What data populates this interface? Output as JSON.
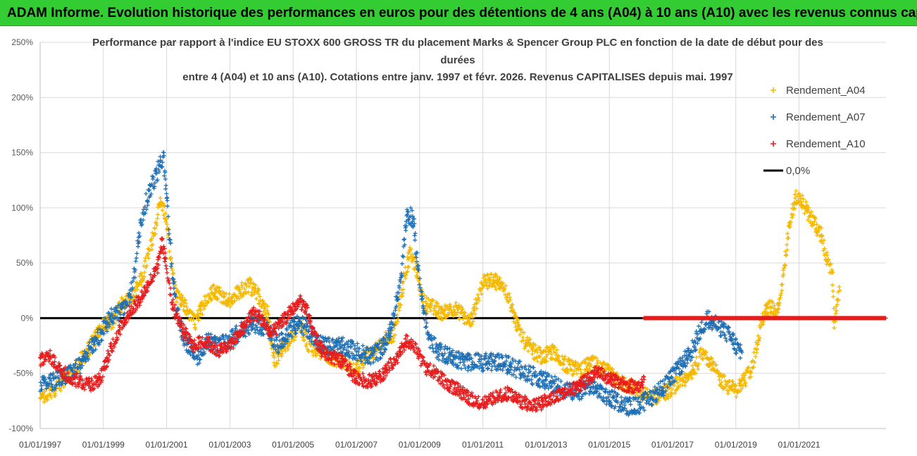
{
  "header": {
    "title": "ADAM Informe. Evolution historique des performances en euros pour des détentions de 4 ans (A04) à 10 ans (A10) avec les revenus connus capitalisés"
  },
  "colors": {
    "banner": "#33cc33",
    "a04": "#f5b800",
    "a07": "#1f6fb5",
    "a10": "#e81c1c",
    "zero": "#000000",
    "grid": "#d9d9d9"
  },
  "chart_data": {
    "type": "scatter",
    "title_lines": [
      "Performance par rapport à l'indice EU STOXX 600 GROSS TR  du placement Marks & Spencer Group PLC en fonction de la date de début pour des",
      "durées",
      "entre 4 (A04) et 10 ans (A10). Cotations entre janv. 1997 et févr. 2026. Revenus CAPITALISES depuis mai. 1997"
    ],
    "x_start_year": 1997,
    "x_end_year": 2023.75,
    "x_ticks": [
      {
        "year": 1997,
        "label": "01/01/1997"
      },
      {
        "year": 1999,
        "label": "01/01/1999"
      },
      {
        "year": 2001,
        "label": "01/01/2001"
      },
      {
        "year": 2003,
        "label": "01/01/2003"
      },
      {
        "year": 2005,
        "label": "01/01/2005"
      },
      {
        "year": 2007,
        "label": "01/01/2007"
      },
      {
        "year": 2009,
        "label": "01/01/2009"
      },
      {
        "year": 2011,
        "label": "01/01/2011"
      },
      {
        "year": 2013,
        "label": "01/01/2013"
      },
      {
        "year": 2015,
        "label": "01/01/2015"
      },
      {
        "year": 2017,
        "label": "01/01/2017"
      },
      {
        "year": 2019,
        "label": "01/01/2019"
      },
      {
        "year": 2021,
        "label": "01/01/2021"
      }
    ],
    "ylim": [
      -100,
      250
    ],
    "y_ticks": [
      {
        "value": 250,
        "label": "250%"
      },
      {
        "value": 200,
        "label": "200%"
      },
      {
        "value": 150,
        "label": "150%"
      },
      {
        "value": 100,
        "label": "100%"
      },
      {
        "value": 50,
        "label": "50%"
      },
      {
        "value": 0,
        "label": "0%"
      },
      {
        "value": -50,
        "label": "-50%"
      },
      {
        "value": -100,
        "label": "-100%"
      }
    ],
    "legend": {
      "position": "right",
      "items": [
        {
          "label": "Rendement_A04",
          "series": "a04",
          "marker": "plus"
        },
        {
          "label": "Rendement_A07",
          "series": "a07",
          "marker": "plus"
        },
        {
          "label": "Rendement_A10",
          "series": "a10",
          "marker": "plus"
        },
        {
          "label": "0,0%",
          "series": "zero",
          "marker": "line"
        }
      ]
    },
    "series": [
      {
        "name": "Rendement_A04",
        "key": "a04",
        "end_year": 2022.3,
        "points": [
          [
            1997.0,
            -75
          ],
          [
            1997.4,
            -65
          ],
          [
            1997.8,
            -55
          ],
          [
            1998.2,
            -42
          ],
          [
            1998.6,
            -25
          ],
          [
            1999.0,
            -5
          ],
          [
            1999.3,
            -3
          ],
          [
            1999.6,
            15
          ],
          [
            1999.9,
            20
          ],
          [
            2000.2,
            35
          ],
          [
            2000.5,
            65
          ],
          [
            2000.8,
            105
          ],
          [
            2000.95,
            95
          ],
          [
            2001.1,
            60
          ],
          [
            2001.3,
            20
          ],
          [
            2001.6,
            10
          ],
          [
            2001.9,
            -5
          ],
          [
            2002.2,
            15
          ],
          [
            2002.5,
            25
          ],
          [
            2002.8,
            20
          ],
          [
            2003.0,
            15
          ],
          [
            2003.3,
            25
          ],
          [
            2003.6,
            30
          ],
          [
            2003.9,
            20
          ],
          [
            2004.2,
            5
          ],
          [
            2004.4,
            -40
          ],
          [
            2004.6,
            -30
          ],
          [
            2004.9,
            -20
          ],
          [
            2005.2,
            -5
          ],
          [
            2005.5,
            -25
          ],
          [
            2005.8,
            -30
          ],
          [
            2006.2,
            -35
          ],
          [
            2006.6,
            -40
          ],
          [
            2007.0,
            -45
          ],
          [
            2007.3,
            -35
          ],
          [
            2007.6,
            -30
          ],
          [
            2007.9,
            -20
          ],
          [
            2008.2,
            -15
          ],
          [
            2008.5,
            35
          ],
          [
            2008.7,
            60
          ],
          [
            2008.9,
            45
          ],
          [
            2009.1,
            15
          ],
          [
            2009.4,
            10
          ],
          [
            2009.7,
            5
          ],
          [
            2010.0,
            10
          ],
          [
            2010.3,
            5
          ],
          [
            2010.6,
            -5
          ],
          [
            2010.8,
            15
          ],
          [
            2011.0,
            32
          ],
          [
            2011.3,
            35
          ],
          [
            2011.6,
            30
          ],
          [
            2011.8,
            20
          ],
          [
            2012.0,
            0
          ],
          [
            2012.3,
            -20
          ],
          [
            2012.6,
            -30
          ],
          [
            2012.9,
            -35
          ],
          [
            2013.2,
            -30
          ],
          [
            2013.5,
            -40
          ],
          [
            2013.8,
            -45
          ],
          [
            2014.1,
            -48
          ],
          [
            2014.4,
            -40
          ],
          [
            2014.7,
            -45
          ],
          [
            2015.0,
            -50
          ],
          [
            2015.3,
            -58
          ],
          [
            2015.7,
            -62
          ],
          [
            2016.0,
            -68
          ],
          [
            2016.3,
            -72
          ],
          [
            2016.6,
            -70
          ],
          [
            2016.9,
            -65
          ],
          [
            2017.2,
            -58
          ],
          [
            2017.5,
            -55
          ],
          [
            2017.8,
            -40
          ],
          [
            2017.95,
            -30
          ],
          [
            2018.2,
            -40
          ],
          [
            2018.5,
            -55
          ],
          [
            2018.8,
            -63
          ],
          [
            2019.0,
            -65
          ],
          [
            2019.3,
            -55
          ],
          [
            2019.5,
            -45
          ],
          [
            2019.7,
            -20
          ],
          [
            2019.9,
            5
          ],
          [
            2020.1,
            10
          ],
          [
            2020.3,
            5
          ],
          [
            2020.5,
            40
          ],
          [
            2020.7,
            85
          ],
          [
            2020.9,
            110
          ],
          [
            2021.1,
            105
          ],
          [
            2021.3,
            95
          ],
          [
            2021.5,
            85
          ],
          [
            2021.7,
            75
          ],
          [
            2021.9,
            50
          ],
          [
            2022.05,
            40
          ],
          [
            2022.1,
            -5
          ],
          [
            2022.3,
            30
          ]
        ]
      },
      {
        "name": "Rendement_A07",
        "key": "a07",
        "end_year": 2019.2,
        "points": [
          [
            1997.0,
            -62
          ],
          [
            1997.4,
            -58
          ],
          [
            1997.8,
            -52
          ],
          [
            1998.2,
            -45
          ],
          [
            1998.6,
            -28
          ],
          [
            1999.0,
            -10
          ],
          [
            1999.2,
            0
          ],
          [
            1999.5,
            5
          ],
          [
            1999.8,
            15
          ],
          [
            2000.0,
            45
          ],
          [
            2000.2,
            90
          ],
          [
            2000.4,
            110
          ],
          [
            2000.6,
            125
          ],
          [
            2000.8,
            140
          ],
          [
            2000.9,
            145
          ],
          [
            2001.0,
            110
          ],
          [
            2001.2,
            30
          ],
          [
            2001.5,
            -15
          ],
          [
            2001.8,
            -30
          ],
          [
            2002.0,
            -35
          ],
          [
            2002.3,
            -20
          ],
          [
            2002.6,
            -25
          ],
          [
            2003.0,
            -20
          ],
          [
            2003.4,
            -10
          ],
          [
            2003.8,
            -5
          ],
          [
            2004.2,
            -10
          ],
          [
            2004.5,
            -25
          ],
          [
            2004.8,
            -15
          ],
          [
            2005.1,
            -5
          ],
          [
            2005.4,
            -8
          ],
          [
            2005.7,
            -20
          ],
          [
            2006.0,
            -25
          ],
          [
            2006.5,
            -25
          ],
          [
            2007.0,
            -30
          ],
          [
            2007.4,
            -35
          ],
          [
            2007.8,
            -28
          ],
          [
            2008.1,
            -10
          ],
          [
            2008.4,
            35
          ],
          [
            2008.6,
            95
          ],
          [
            2008.8,
            90
          ],
          [
            2009.0,
            30
          ],
          [
            2009.3,
            -20
          ],
          [
            2009.6,
            -30
          ],
          [
            2010.0,
            -35
          ],
          [
            2010.4,
            -40
          ],
          [
            2010.8,
            -40
          ],
          [
            2011.2,
            -40
          ],
          [
            2011.6,
            -40
          ],
          [
            2012.0,
            -45
          ],
          [
            2012.4,
            -50
          ],
          [
            2012.8,
            -55
          ],
          [
            2013.2,
            -60
          ],
          [
            2013.6,
            -65
          ],
          [
            2014.0,
            -68
          ],
          [
            2014.4,
            -62
          ],
          [
            2014.8,
            -70
          ],
          [
            2015.2,
            -75
          ],
          [
            2015.6,
            -80
          ],
          [
            2016.0,
            -78
          ],
          [
            2016.4,
            -70
          ],
          [
            2016.8,
            -60
          ],
          [
            2017.2,
            -45
          ],
          [
            2017.6,
            -30
          ],
          [
            2017.9,
            -10
          ],
          [
            2018.1,
            0
          ],
          [
            2018.3,
            -5
          ],
          [
            2018.6,
            -10
          ],
          [
            2018.9,
            -20
          ],
          [
            2019.2,
            -35
          ]
        ]
      },
      {
        "name": "Rendement_A10",
        "key": "a10",
        "end_year": 2016.1,
        "points": [
          [
            1997.0,
            -38
          ],
          [
            1997.3,
            -35
          ],
          [
            1997.6,
            -45
          ],
          [
            1998.0,
            -55
          ],
          [
            1998.3,
            -58
          ],
          [
            1998.6,
            -60
          ],
          [
            1998.9,
            -55
          ],
          [
            1999.2,
            -30
          ],
          [
            1999.5,
            -10
          ],
          [
            1999.8,
            5
          ],
          [
            2000.1,
            15
          ],
          [
            2000.4,
            30
          ],
          [
            2000.7,
            45
          ],
          [
            2000.85,
            70
          ],
          [
            2001.0,
            45
          ],
          [
            2001.2,
            10
          ],
          [
            2001.5,
            -10
          ],
          [
            2001.8,
            -25
          ],
          [
            2002.2,
            -20
          ],
          [
            2002.6,
            -30
          ],
          [
            2003.0,
            -25
          ],
          [
            2003.4,
            -10
          ],
          [
            2003.7,
            5
          ],
          [
            2004.0,
            0
          ],
          [
            2004.3,
            -15
          ],
          [
            2004.6,
            -5
          ],
          [
            2004.9,
            5
          ],
          [
            2005.2,
            15
          ],
          [
            2005.4,
            10
          ],
          [
            2005.6,
            -10
          ],
          [
            2005.9,
            -30
          ],
          [
            2006.2,
            -35
          ],
          [
            2006.6,
            -40
          ],
          [
            2006.9,
            -52
          ],
          [
            2007.3,
            -57
          ],
          [
            2007.7,
            -55
          ],
          [
            2008.0,
            -45
          ],
          [
            2008.3,
            -35
          ],
          [
            2008.6,
            -20
          ],
          [
            2008.9,
            -30
          ],
          [
            2009.2,
            -45
          ],
          [
            2009.5,
            -50
          ],
          [
            2009.8,
            -58
          ],
          [
            2010.2,
            -65
          ],
          [
            2010.6,
            -73
          ],
          [
            2011.0,
            -78
          ],
          [
            2011.4,
            -72
          ],
          [
            2011.8,
            -68
          ],
          [
            2012.2,
            -75
          ],
          [
            2012.6,
            -80
          ],
          [
            2013.0,
            -75
          ],
          [
            2013.4,
            -70
          ],
          [
            2013.8,
            -65
          ],
          [
            2014.2,
            -58
          ],
          [
            2014.6,
            -48
          ],
          [
            2015.0,
            -55
          ],
          [
            2015.4,
            -60
          ],
          [
            2015.8,
            -62
          ],
          [
            2016.1,
            -58
          ]
        ]
      }
    ],
    "post_end_value": 0,
    "post_end_series": "Rendement_A10",
    "post_end_start": 2016.1,
    "post_end_stop": 2023.75
  }
}
